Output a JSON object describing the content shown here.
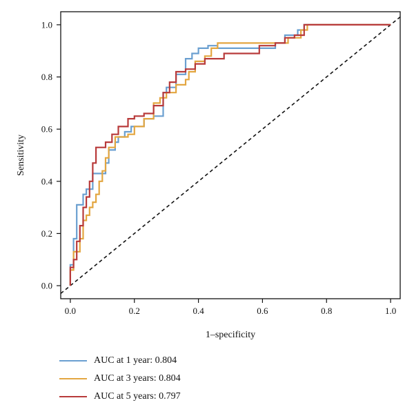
{
  "chart_data": {
    "type": "line",
    "xlabel": "1–specificity",
    "ylabel": "Sensitivity",
    "xlim": [
      -0.03,
      1.03
    ],
    "ylim": [
      -0.05,
      1.05
    ],
    "xticks": [
      0.0,
      0.2,
      0.4,
      0.6,
      0.8,
      1.0
    ],
    "yticks": [
      0.0,
      0.2,
      0.4,
      0.6,
      0.8,
      1.0
    ],
    "xtick_labels": [
      "0.0",
      "0.2",
      "0.4",
      "0.6",
      "0.8",
      "1.0"
    ],
    "ytick_labels": [
      "0.0",
      "0.2",
      "0.4",
      "0.6",
      "0.8",
      "1.0"
    ],
    "grid": false,
    "legend_position": "bottom-left, below plot",
    "reference_line": {
      "style": "dashed",
      "color": "#111111",
      "from": [
        0,
        0
      ],
      "to": [
        1,
        1
      ]
    },
    "series": [
      {
        "name": "AUC at 1 year: 0.804",
        "color": "#6a9fd0",
        "x": [
          0,
          0,
          0.01,
          0.01,
          0.02,
          0.02,
          0.04,
          0.04,
          0.05,
          0.05,
          0.07,
          0.07,
          0.09,
          0.09,
          0.11,
          0.11,
          0.12,
          0.12,
          0.14,
          0.14,
          0.15,
          0.15,
          0.17,
          0.17,
          0.19,
          0.19,
          0.23,
          0.23,
          0.26,
          0.26,
          0.29,
          0.29,
          0.3,
          0.3,
          0.33,
          0.33,
          0.36,
          0.36,
          0.38,
          0.38,
          0.4,
          0.4,
          0.43,
          0.43,
          0.46,
          0.46,
          0.53,
          0.53,
          0.64,
          0.64,
          0.67,
          0.67,
          0.71,
          0.71,
          0.73,
          0.73,
          1.0
        ],
        "y": [
          0,
          0.08,
          0.08,
          0.18,
          0.18,
          0.31,
          0.31,
          0.35,
          0.35,
          0.37,
          0.37,
          0.43,
          0.43,
          0.43,
          0.43,
          0.47,
          0.47,
          0.52,
          0.52,
          0.55,
          0.55,
          0.57,
          0.57,
          0.59,
          0.59,
          0.61,
          0.61,
          0.64,
          0.64,
          0.65,
          0.65,
          0.74,
          0.74,
          0.76,
          0.76,
          0.81,
          0.81,
          0.87,
          0.87,
          0.89,
          0.89,
          0.91,
          0.91,
          0.92,
          0.92,
          0.91,
          0.91,
          0.91,
          0.91,
          0.93,
          0.93,
          0.96,
          0.96,
          0.98,
          0.98,
          1.0,
          1.0
        ]
      },
      {
        "name": "AUC at 3 years: 0.804",
        "color": "#e3a640",
        "x": [
          0,
          0,
          0.01,
          0.01,
          0.03,
          0.03,
          0.04,
          0.04,
          0.05,
          0.05,
          0.06,
          0.06,
          0.07,
          0.07,
          0.08,
          0.08,
          0.09,
          0.09,
          0.1,
          0.1,
          0.11,
          0.11,
          0.12,
          0.12,
          0.14,
          0.14,
          0.18,
          0.18,
          0.2,
          0.2,
          0.23,
          0.23,
          0.26,
          0.26,
          0.28,
          0.28,
          0.3,
          0.3,
          0.33,
          0.33,
          0.36,
          0.36,
          0.37,
          0.37,
          0.39,
          0.39,
          0.42,
          0.42,
          0.44,
          0.44,
          0.46,
          0.46,
          0.64,
          0.64,
          0.68,
          0.68,
          0.72,
          0.72,
          0.74,
          0.74,
          1.0
        ],
        "y": [
          0,
          0.06,
          0.06,
          0.13,
          0.13,
          0.18,
          0.18,
          0.25,
          0.25,
          0.27,
          0.27,
          0.3,
          0.3,
          0.32,
          0.32,
          0.35,
          0.35,
          0.4,
          0.4,
          0.44,
          0.44,
          0.49,
          0.49,
          0.53,
          0.53,
          0.57,
          0.57,
          0.58,
          0.58,
          0.61,
          0.61,
          0.64,
          0.64,
          0.7,
          0.7,
          0.72,
          0.72,
          0.74,
          0.74,
          0.77,
          0.77,
          0.79,
          0.79,
          0.82,
          0.82,
          0.86,
          0.86,
          0.88,
          0.88,
          0.91,
          0.91,
          0.93,
          0.93,
          0.93,
          0.93,
          0.95,
          0.95,
          0.98,
          0.98,
          1.0,
          1.0
        ]
      },
      {
        "name": "AUC at 5 years: 0.797",
        "color": "#b83a3a",
        "x": [
          0,
          0,
          0.01,
          0.01,
          0.02,
          0.02,
          0.03,
          0.03,
          0.04,
          0.04,
          0.05,
          0.05,
          0.06,
          0.06,
          0.07,
          0.07,
          0.08,
          0.08,
          0.09,
          0.09,
          0.11,
          0.11,
          0.13,
          0.13,
          0.15,
          0.15,
          0.18,
          0.18,
          0.2,
          0.2,
          0.23,
          0.23,
          0.26,
          0.26,
          0.29,
          0.29,
          0.31,
          0.31,
          0.33,
          0.33,
          0.36,
          0.36,
          0.39,
          0.39,
          0.42,
          0.42,
          0.45,
          0.45,
          0.48,
          0.48,
          0.53,
          0.53,
          0.59,
          0.59,
          0.64,
          0.64,
          0.67,
          0.67,
          0.7,
          0.7,
          0.73,
          0.73,
          1.0
        ],
        "y": [
          0,
          0.07,
          0.07,
          0.1,
          0.1,
          0.17,
          0.17,
          0.23,
          0.23,
          0.3,
          0.3,
          0.34,
          0.34,
          0.4,
          0.4,
          0.47,
          0.47,
          0.53,
          0.53,
          0.53,
          0.53,
          0.55,
          0.55,
          0.58,
          0.58,
          0.61,
          0.61,
          0.64,
          0.64,
          0.65,
          0.65,
          0.66,
          0.66,
          0.69,
          0.69,
          0.74,
          0.74,
          0.78,
          0.78,
          0.82,
          0.82,
          0.83,
          0.83,
          0.85,
          0.85,
          0.87,
          0.87,
          0.87,
          0.87,
          0.89,
          0.89,
          0.89,
          0.89,
          0.92,
          0.92,
          0.93,
          0.93,
          0.95,
          0.95,
          0.96,
          0.96,
          1.0,
          1.0
        ]
      }
    ]
  }
}
